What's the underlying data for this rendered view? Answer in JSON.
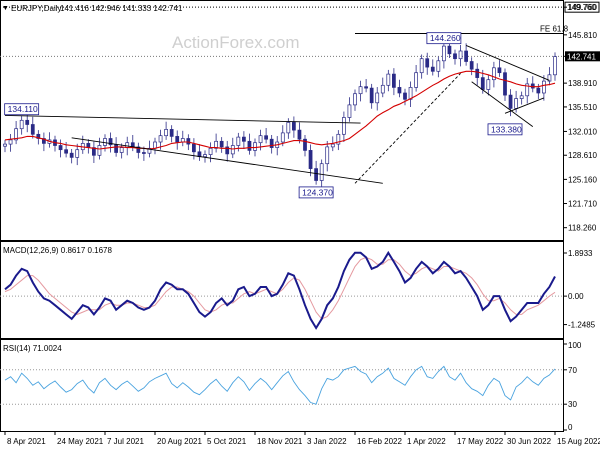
{
  "header": {
    "symbol_line": "EURJPY,Daily",
    "ohlc": "141.416 142.946 141.333 142.741",
    "collapse_glyph": "▼",
    "watermark": "ActionForex.com"
  },
  "colors": {
    "candle_up": "#2a2a86",
    "candle_down": "#2a2a86",
    "sma": "#d40000",
    "trendline": "#000000",
    "macd_line": "#1a1a8c",
    "macd_signal": "#e59aa0",
    "rsi_line": "#4aa3df",
    "price_tag_bg": "#000000",
    "price_tag_text": "#ffffff",
    "label_box_border": "#1a1a8c"
  },
  "chart_data": [
    {
      "type": "candlestick",
      "name": "main",
      "title": "EURJPY,Daily",
      "ylim": [
        116.5,
        150.5
      ],
      "yticks": [
        {
          "label": "149.760",
          "value": 149.76
        },
        {
          "label": "145.810",
          "value": 145.81
        },
        {
          "label": "142.741",
          "value": 142.741
        },
        {
          "label": "138.910",
          "value": 138.91
        },
        {
          "label": "135.510",
          "value": 135.51
        },
        {
          "label": "132.010",
          "value": 132.01
        },
        {
          "label": "128.610",
          "value": 128.61
        },
        {
          "label": "125.160",
          "value": 125.16
        },
        {
          "label": "121.710",
          "value": 121.71
        },
        {
          "label": "118.260",
          "value": 118.26
        }
      ],
      "current_price": {
        "label": "142.741",
        "value": 142.741
      },
      "level_line": {
        "label": "149.760",
        "value": 149.76
      },
      "fib_line": {
        "label": "FE 61.8",
        "value": 146.0,
        "x_start": 63
      },
      "annotations": [
        {
          "text": "134.110",
          "bar": 3,
          "value": 134.11,
          "pos": "above"
        },
        {
          "text": "124.370",
          "bar": 56,
          "value": 124.37,
          "pos": "below"
        },
        {
          "text": "144.260",
          "bar": 79,
          "value": 144.26,
          "pos": "above"
        },
        {
          "text": "133.380",
          "bar": 90,
          "value": 133.38,
          "pos": "below"
        }
      ],
      "trendlines": [
        {
          "from": [
            0,
            134.3
          ],
          "to": [
            64,
            133.2
          ]
        },
        {
          "from": [
            12,
            131.1
          ],
          "to": [
            68,
            124.6
          ]
        },
        {
          "from": [
            63,
            124.6
          ],
          "to": [
            82,
            140.3
          ],
          "dashed": true
        },
        {
          "from": [
            83,
            144.3
          ],
          "to": [
            98,
            139.3
          ]
        },
        {
          "from": [
            84,
            139.1
          ],
          "to": [
            95,
            132.7
          ]
        },
        {
          "from": [
            90,
            134.6
          ],
          "to": [
            97,
            136.8
          ]
        }
      ],
      "closes": [
        130.2,
        130.8,
        132.4,
        133.6,
        133.0,
        131.6,
        131.0,
        130.3,
        130.8,
        130.0,
        129.4,
        128.9,
        128.3,
        129.4,
        130.3,
        129.7,
        128.6,
        130.0,
        131.0,
        130.1,
        129.0,
        129.7,
        130.4,
        129.8,
        129.0,
        128.9,
        129.6,
        130.5,
        131.4,
        132.3,
        131.3,
        130.5,
        131.0,
        130.2,
        129.1,
        128.4,
        128.7,
        129.6,
        130.6,
        129.8,
        128.8,
        130.0,
        131.2,
        130.6,
        129.3,
        130.4,
        131.4,
        130.9,
        129.7,
        130.5,
        131.8,
        133.3,
        132.2,
        130.9,
        129.3,
        126.7,
        125.0,
        127.4,
        129.8,
        130.2,
        131.6,
        134.0,
        135.8,
        137.4,
        138.4,
        138.2,
        136.1,
        137.5,
        138.6,
        140.2,
        138.3,
        137.5,
        136.6,
        138.3,
        140.4,
        142.4,
        141.2,
        140.6,
        142.1,
        144.2,
        143.1,
        142.4,
        143.5,
        142.0,
        140.9,
        139.7,
        138.0,
        139.4,
        141.1,
        140.4,
        137.2,
        135.3,
        136.7,
        137.1,
        138.8,
        138.2,
        137.5,
        139.2,
        140.1,
        142.7
      ],
      "sma": [
        130.8,
        130.9,
        131.0,
        131.1,
        131.3,
        131.3,
        131.1,
        130.9,
        130.6,
        130.4,
        130.3,
        130.1,
        130.0,
        129.9,
        129.8,
        129.7,
        129.6,
        129.5,
        129.6,
        129.7,
        129.8,
        129.8,
        129.7,
        129.7,
        129.6,
        129.6,
        129.5,
        129.6,
        129.8,
        130.0,
        130.3,
        130.4,
        130.5,
        130.5,
        130.3,
        130.1,
        129.9,
        129.7,
        129.7,
        129.6,
        129.6,
        129.5,
        129.6,
        129.6,
        129.7,
        129.7,
        129.8,
        129.9,
        130.0,
        130.1,
        130.3,
        130.5,
        130.7,
        130.7,
        130.6,
        130.4,
        130.2,
        130.1,
        130.2,
        130.3,
        130.5,
        130.7,
        131.0,
        131.6,
        132.2,
        132.8,
        133.5,
        134.2,
        134.7,
        135.1,
        135.6,
        135.9,
        136.3,
        136.7,
        137.1,
        137.6,
        138.1,
        138.6,
        139.0,
        139.5,
        139.9,
        140.2,
        140.4,
        140.6,
        140.6,
        140.5,
        140.3,
        140.1,
        139.8,
        139.5,
        139.3,
        139.1,
        138.8,
        138.6,
        138.5,
        138.4,
        138.4,
        138.6,
        138.7,
        138.9
      ]
    },
    {
      "type": "line",
      "name": "macd",
      "title": "MACD(12,26,9) 0.8617 0.1678",
      "ylim": [
        -1.75,
        2.2
      ],
      "yticks": [
        {
          "label": "1.8933",
          "value": 1.8933
        },
        {
          "label": "0.00",
          "value": 0.0
        },
        {
          "label": "-1.2485",
          "value": -1.2485
        }
      ],
      "series": [
        {
          "role": "macd",
          "values": [
            0.3,
            0.5,
            0.9,
            1.2,
            1.1,
            0.6,
            0.2,
            -0.1,
            -0.2,
            -0.4,
            -0.6,
            -0.8,
            -1.0,
            -0.7,
            -0.4,
            -0.5,
            -0.8,
            -0.5,
            -0.1,
            -0.2,
            -0.6,
            -0.4,
            -0.2,
            -0.3,
            -0.5,
            -0.6,
            -0.5,
            -0.2,
            0.3,
            0.6,
            0.5,
            0.3,
            0.3,
            0.1,
            -0.3,
            -0.7,
            -0.9,
            -0.7,
            -0.3,
            -0.1,
            -0.4,
            -0.2,
            0.3,
            0.4,
            0.0,
            0.1,
            0.4,
            0.4,
            0.0,
            0.1,
            0.5,
            1.0,
            0.9,
            0.3,
            -0.4,
            -1.0,
            -1.4,
            -1.0,
            -0.4,
            -0.1,
            0.4,
            1.1,
            1.6,
            1.9,
            1.9,
            1.7,
            1.2,
            1.3,
            1.5,
            1.9,
            1.5,
            1.1,
            0.6,
            0.8,
            1.2,
            1.5,
            1.3,
            1.0,
            1.2,
            1.5,
            1.3,
            1.0,
            1.1,
            0.8,
            0.4,
            0.0,
            -0.6,
            -0.4,
            0.0,
            0.0,
            -0.6,
            -1.1,
            -0.9,
            -0.6,
            -0.3,
            -0.3,
            -0.3,
            0.1,
            0.4,
            0.86
          ]
        },
        {
          "role": "signal",
          "values": [
            0.2,
            0.3,
            0.5,
            0.7,
            0.9,
            0.9,
            0.7,
            0.4,
            0.1,
            -0.1,
            -0.3,
            -0.5,
            -0.7,
            -0.8,
            -0.7,
            -0.6,
            -0.6,
            -0.6,
            -0.4,
            -0.3,
            -0.4,
            -0.4,
            -0.3,
            -0.3,
            -0.4,
            -0.5,
            -0.5,
            -0.4,
            -0.1,
            0.2,
            0.4,
            0.4,
            0.3,
            0.2,
            0.0,
            -0.3,
            -0.6,
            -0.7,
            -0.6,
            -0.4,
            -0.3,
            -0.3,
            -0.1,
            0.1,
            0.2,
            0.1,
            0.2,
            0.3,
            0.2,
            0.1,
            0.3,
            0.6,
            0.8,
            0.7,
            0.3,
            -0.2,
            -0.7,
            -1.0,
            -0.9,
            -0.6,
            -0.2,
            0.3,
            0.8,
            1.3,
            1.6,
            1.7,
            1.6,
            1.4,
            1.4,
            1.6,
            1.6,
            1.4,
            1.1,
            0.9,
            1.0,
            1.2,
            1.3,
            1.2,
            1.1,
            1.3,
            1.3,
            1.2,
            1.1,
            1.0,
            0.8,
            0.5,
            0.1,
            -0.2,
            -0.2,
            -0.1,
            -0.3,
            -0.6,
            -0.8,
            -0.8,
            -0.6,
            -0.5,
            -0.4,
            -0.2,
            0.0,
            0.17
          ]
        }
      ]
    },
    {
      "type": "line",
      "name": "rsi",
      "title": "RSI(14) 71.0024",
      "ylim": [
        0,
        100
      ],
      "yticks": [
        {
          "label": "100",
          "value": 100
        },
        {
          "label": "70",
          "value": 70
        },
        {
          "label": "30",
          "value": 30
        },
        {
          "label": "0",
          "value": 0
        }
      ],
      "levels": [
        70,
        30
      ],
      "series": [
        {
          "role": "rsi",
          "values": [
            58,
            62,
            55,
            66,
            60,
            52,
            56,
            48,
            53,
            57,
            50,
            44,
            47,
            54,
            58,
            49,
            43,
            55,
            60,
            52,
            47,
            53,
            57,
            51,
            45,
            49,
            56,
            60,
            63,
            66,
            54,
            49,
            55,
            50,
            44,
            41,
            47,
            54,
            59,
            51,
            45,
            55,
            62,
            56,
            46,
            54,
            60,
            55,
            47,
            55,
            63,
            68,
            56,
            47,
            40,
            32,
            30,
            48,
            60,
            58,
            62,
            70,
            72,
            74,
            68,
            65,
            55,
            62,
            66,
            72,
            60,
            56,
            52,
            62,
            70,
            74,
            62,
            60,
            68,
            74,
            62,
            58,
            66,
            55,
            48,
            45,
            40,
            52,
            60,
            56,
            40,
            35,
            50,
            55,
            62,
            56,
            52,
            60,
            64,
            71
          ]
        }
      ]
    }
  ],
  "x_axis": {
    "labels": [
      {
        "text": "8 Apr 2021",
        "bar": 0
      },
      {
        "text": "24 May 2021",
        "bar": 9
      },
      {
        "text": "7 Jul 2021",
        "bar": 18
      },
      {
        "text": "20 Aug 2021",
        "bar": 27
      },
      {
        "text": "5 Oct 2021",
        "bar": 36
      },
      {
        "text": "18 Nov 2021",
        "bar": 45
      },
      {
        "text": "3 Jan 2022",
        "bar": 54
      },
      {
        "text": "16 Feb 2022",
        "bar": 63
      },
      {
        "text": "1 Apr 2022",
        "bar": 72
      },
      {
        "text": "17 May 2022",
        "bar": 81
      },
      {
        "text": "30 Jun 2022",
        "bar": 90
      },
      {
        "text": "15 Aug 2022",
        "bar": 99
      }
    ]
  }
}
